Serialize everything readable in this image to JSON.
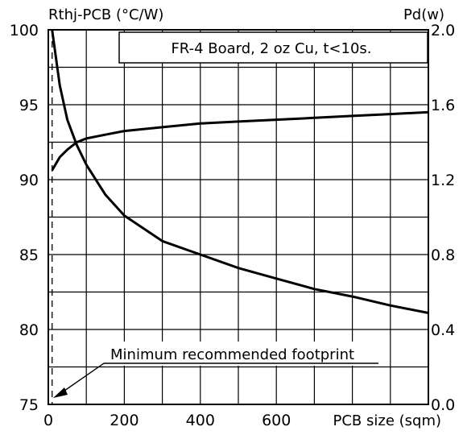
{
  "chart_data": {
    "type": "line",
    "title": "",
    "left_axis_label": "Rthj-PCB (°C/W)",
    "right_axis_label": "Pd(w)",
    "xlabel": "PCB size (sqm)",
    "xlim": [
      0,
      1000
    ],
    "ylim_left": [
      75,
      100
    ],
    "ylim_right": [
      0.0,
      2.0
    ],
    "x_tick_labels": [
      "0",
      "200",
      "400",
      "600"
    ],
    "y_left_tick_labels": [
      "100",
      "95",
      "90",
      "85",
      "80",
      "75"
    ],
    "y_right_tick_labels": [
      "2.0",
      "1.6",
      "1.2",
      "0.8",
      "0.4",
      "0.0"
    ],
    "grid": true,
    "annotation_box": "FR-4 Board, 2 oz Cu, t<10s.",
    "footprint_label": "Minimum recommended footprint",
    "footprint_x": 10,
    "series": [
      {
        "axis": "left",
        "x": [
          10,
          30,
          50,
          75,
          100,
          150,
          200,
          300,
          400,
          500,
          600,
          700,
          800,
          900,
          1000
        ],
        "values": [
          100,
          96.3,
          94.0,
          92.3,
          91.0,
          89.0,
          87.6,
          85.9,
          85.0,
          84.1,
          83.4,
          82.7,
          82.2,
          81.6,
          81.1
        ]
      },
      {
        "axis": "right",
        "x": [
          10,
          30,
          50,
          75,
          100,
          150,
          200,
          300,
          400,
          500,
          600,
          700,
          800,
          900,
          1000
        ],
        "values": [
          1.25,
          1.32,
          1.36,
          1.4,
          1.42,
          1.44,
          1.46,
          1.48,
          1.5,
          1.51,
          1.52,
          1.53,
          1.54,
          1.55,
          1.56
        ]
      }
    ]
  }
}
